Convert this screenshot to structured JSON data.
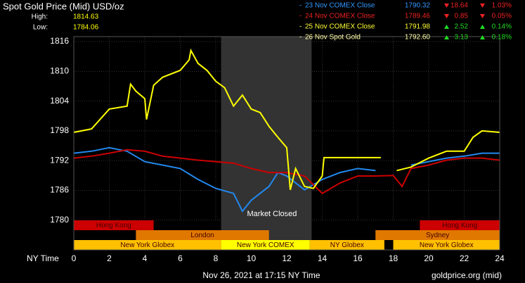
{
  "chart_data": {
    "type": "line",
    "title": "Spot Gold Price (Mid) USD/oz",
    "high_label": "High:",
    "high": "1814.63",
    "low_label": "Low:",
    "low": "1784.06",
    "x_label": "NY Time",
    "footer_left": "Nov 26, 2021 at 17:15 NY Time",
    "footer_right": "goldprice.org (mid)",
    "xlim": [
      0,
      24
    ],
    "xticks": [
      0,
      2,
      4,
      6,
      8,
      10,
      12,
      14,
      16,
      18,
      20,
      22,
      24
    ],
    "ylim": [
      1774,
      1817
    ],
    "yticks": [
      1780,
      1786,
      1792,
      1798,
      1804,
      1810,
      1816
    ],
    "grid": true,
    "shaded_region": {
      "label": "Market Closed",
      "start": 8.3,
      "end": 13.4,
      "color": "#333333"
    },
    "session_rows": [
      [
        {
          "label": "Hong Kong",
          "start": 0,
          "end": 4.5,
          "color": "#cc0000"
        },
        {
          "label": "Hong Kong",
          "start": 19.5,
          "end": 24,
          "color": "#cc0000"
        }
      ],
      [
        {
          "label": "London",
          "start": 3.5,
          "end": 11,
          "color": "#e07800"
        },
        {
          "label": "Sydney",
          "start": 17,
          "end": 24,
          "color": "#e07800"
        }
      ],
      [
        {
          "label": "New York Globex",
          "start": 0,
          "end": 8.3,
          "color": "#ffc000"
        },
        {
          "label": "New York COMEX",
          "start": 8.3,
          "end": 13.3,
          "color": "#ffff00"
        },
        {
          "label": "NY Globex",
          "start": 13.3,
          "end": 17.5,
          "color": "#ffc000"
        },
        {
          "label": "New York Globex",
          "start": 18,
          "end": 24,
          "color": "#ffc000"
        }
      ]
    ],
    "series": [
      {
        "name": "23 Nov COMEX Close",
        "color": "#2288ee",
        "text_color": "#3399ff",
        "price": "1790.32",
        "change": "18.64",
        "pct": "1.03%",
        "direction": "down",
        "x": [
          0,
          1,
          2,
          3,
          4,
          5,
          6,
          7,
          8,
          9,
          9.5,
          10,
          11,
          11.5,
          12,
          13,
          14,
          15,
          16,
          17,
          18,
          19,
          20,
          21,
          22,
          23,
          24
        ],
        "values": [
          1793.5,
          1793.9,
          1794.6,
          1793.9,
          1791.8,
          1791.1,
          1790.4,
          1788.2,
          1786.4,
          1785.4,
          1781.8,
          1784,
          1786.8,
          1789.6,
          1788.9,
          1786.1,
          1788.2,
          1789.6,
          1790.4,
          1790,
          null,
          1791.1,
          1791.8,
          1792.5,
          1792.9,
          1793.5,
          1793.5
        ]
      },
      {
        "name": "24 Nov COMEX Close",
        "color": "#cc0000",
        "text_color": "#ee2222",
        "price": "1789.46",
        "change": "0.85",
        "pct": "0.05%",
        "direction": "down",
        "x": [
          0,
          1,
          2,
          3,
          4,
          5,
          6,
          7,
          8,
          9,
          10,
          11,
          12,
          13,
          14,
          15,
          16,
          17,
          18,
          18.5,
          19,
          20,
          21,
          22,
          23,
          24
        ],
        "values": [
          1792.5,
          1792.9,
          1793.5,
          1794.2,
          1793.9,
          1792.9,
          1792.5,
          1792.1,
          1791.8,
          1791.5,
          1790.4,
          1789.6,
          1789.6,
          1788.9,
          1785.4,
          1787.5,
          1788.9,
          1788.9,
          1789,
          1786.8,
          1790.4,
          1791.1,
          1792.1,
          1792.5,
          1792.5,
          1792.1
        ]
      },
      {
        "name": "25 Nov COMEX Close",
        "color": "#ffff00",
        "text_color": "#ffff33",
        "price": "1791.98",
        "change": "2.52",
        "pct": "0.14%",
        "direction": "up",
        "x": [
          0,
          1,
          2,
          3,
          3.2,
          3.5,
          4,
          4.1,
          4.5,
          5,
          6,
          6.5,
          6.6,
          7,
          7.5,
          8,
          8.5,
          9,
          9.5,
          10,
          10.5,
          11,
          11.5,
          12,
          12.2,
          12.5,
          13,
          13.5,
          14,
          14.1,
          17.3,
          17.5,
          18.2,
          19,
          20,
          21,
          22,
          22.5,
          23,
          24
        ],
        "values": [
          1797.7,
          1798.4,
          1802.4,
          1803,
          1807.4,
          1806,
          1804.5,
          1800.3,
          1807.2,
          1808.8,
          1810.2,
          1812.3,
          1814.2,
          1811.6,
          1810.2,
          1808,
          1806.7,
          1803,
          1805.2,
          1802.4,
          1801.7,
          1798.9,
          1796.7,
          1794.6,
          1786.1,
          1790.4,
          1786.8,
          1786.4,
          1788.9,
          1792.6,
          1792.6,
          null,
          1790,
          1790.7,
          1792.5,
          1793.9,
          1793.9,
          1796.7,
          1798,
          1797.7
        ]
      },
      {
        "name": "26 Nov Spot Gold",
        "color": "#ffff00",
        "text_color": "#ffffaa",
        "price": "1792.60",
        "change": "3.13",
        "pct": "0.18%",
        "direction": "up",
        "x": [],
        "values": []
      }
    ]
  }
}
